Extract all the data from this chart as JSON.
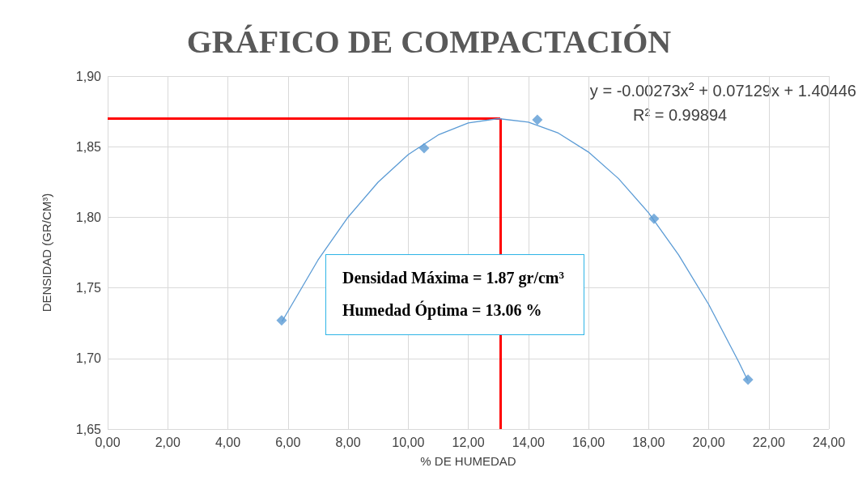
{
  "chart_data": {
    "type": "scatter",
    "title": "GRÁFICO DE COMPACTACIÓN",
    "xlabel": "% DE HUMEDAD",
    "ylabel": "DENSIDAD (GR/CM³)",
    "x": [
      5.79,
      10.53,
      14.3,
      18.18,
      21.31
    ],
    "series": [
      {
        "color": "#5b9bd5",
        "values": [
          1.727,
          1.849,
          1.869,
          1.799,
          1.685
        ]
      },
      {
        "type": "line",
        "color": "#5b9bd5",
        "marker": "none",
        "x": [
          5.8,
          7,
          8,
          9,
          10,
          11,
          12,
          13,
          14,
          15,
          16,
          17,
          18,
          19,
          20,
          21,
          21.3
        ],
        "values": [
          1.7261,
          1.7697,
          1.8001,
          1.8249,
          1.8444,
          1.8583,
          1.8668,
          1.8699,
          1.8674,
          1.8596,
          1.8462,
          1.8274,
          1.8032,
          1.7734,
          1.7383,
          1.6976,
          1.6844
        ]
      }
    ],
    "marker": "diamond",
    "xlim": [
      0,
      24
    ],
    "ylim": [
      1.65,
      1.9
    ],
    "xticks": [
      {
        "value": 0,
        "label": "0,00"
      },
      {
        "value": 2,
        "label": "2,00"
      },
      {
        "value": 4,
        "label": "4,00"
      },
      {
        "value": 6,
        "label": "6,00"
      },
      {
        "value": 8,
        "label": "8,00"
      },
      {
        "value": 10,
        "label": "10,00"
      },
      {
        "value": 12,
        "label": "12,00"
      },
      {
        "value": 14,
        "label": "14,00"
      },
      {
        "value": 16,
        "label": "16,00"
      },
      {
        "value": 18,
        "label": "18,00"
      },
      {
        "value": 20,
        "label": "20,00"
      },
      {
        "value": 22,
        "label": "22,00"
      },
      {
        "value": 24,
        "label": "24,00"
      }
    ],
    "yticks": [
      {
        "value": 1.65,
        "label": "1,65"
      },
      {
        "value": 1.7,
        "label": "1,70"
      },
      {
        "value": 1.75,
        "label": "1,75"
      },
      {
        "value": 1.8,
        "label": "1,80"
      },
      {
        "value": 1.85,
        "label": "1,85"
      },
      {
        "value": 1.9,
        "label": "1,90"
      }
    ],
    "grid": true,
    "ref_lines": [
      {
        "axis": "y",
        "value": 1.87,
        "color": "#ff0000"
      },
      {
        "axis": "x",
        "value": 13.06,
        "color": "#ff0000"
      }
    ],
    "annotations": [
      "y = -0.00273x$^{2}$ + 0.07129x + 1.40446",
      "R² = 0.99894",
      "Densidad Máxima = 1.87 gr/cm$^{3}$",
      "Humedad Óptima = 13.06 %"
    ]
  }
}
